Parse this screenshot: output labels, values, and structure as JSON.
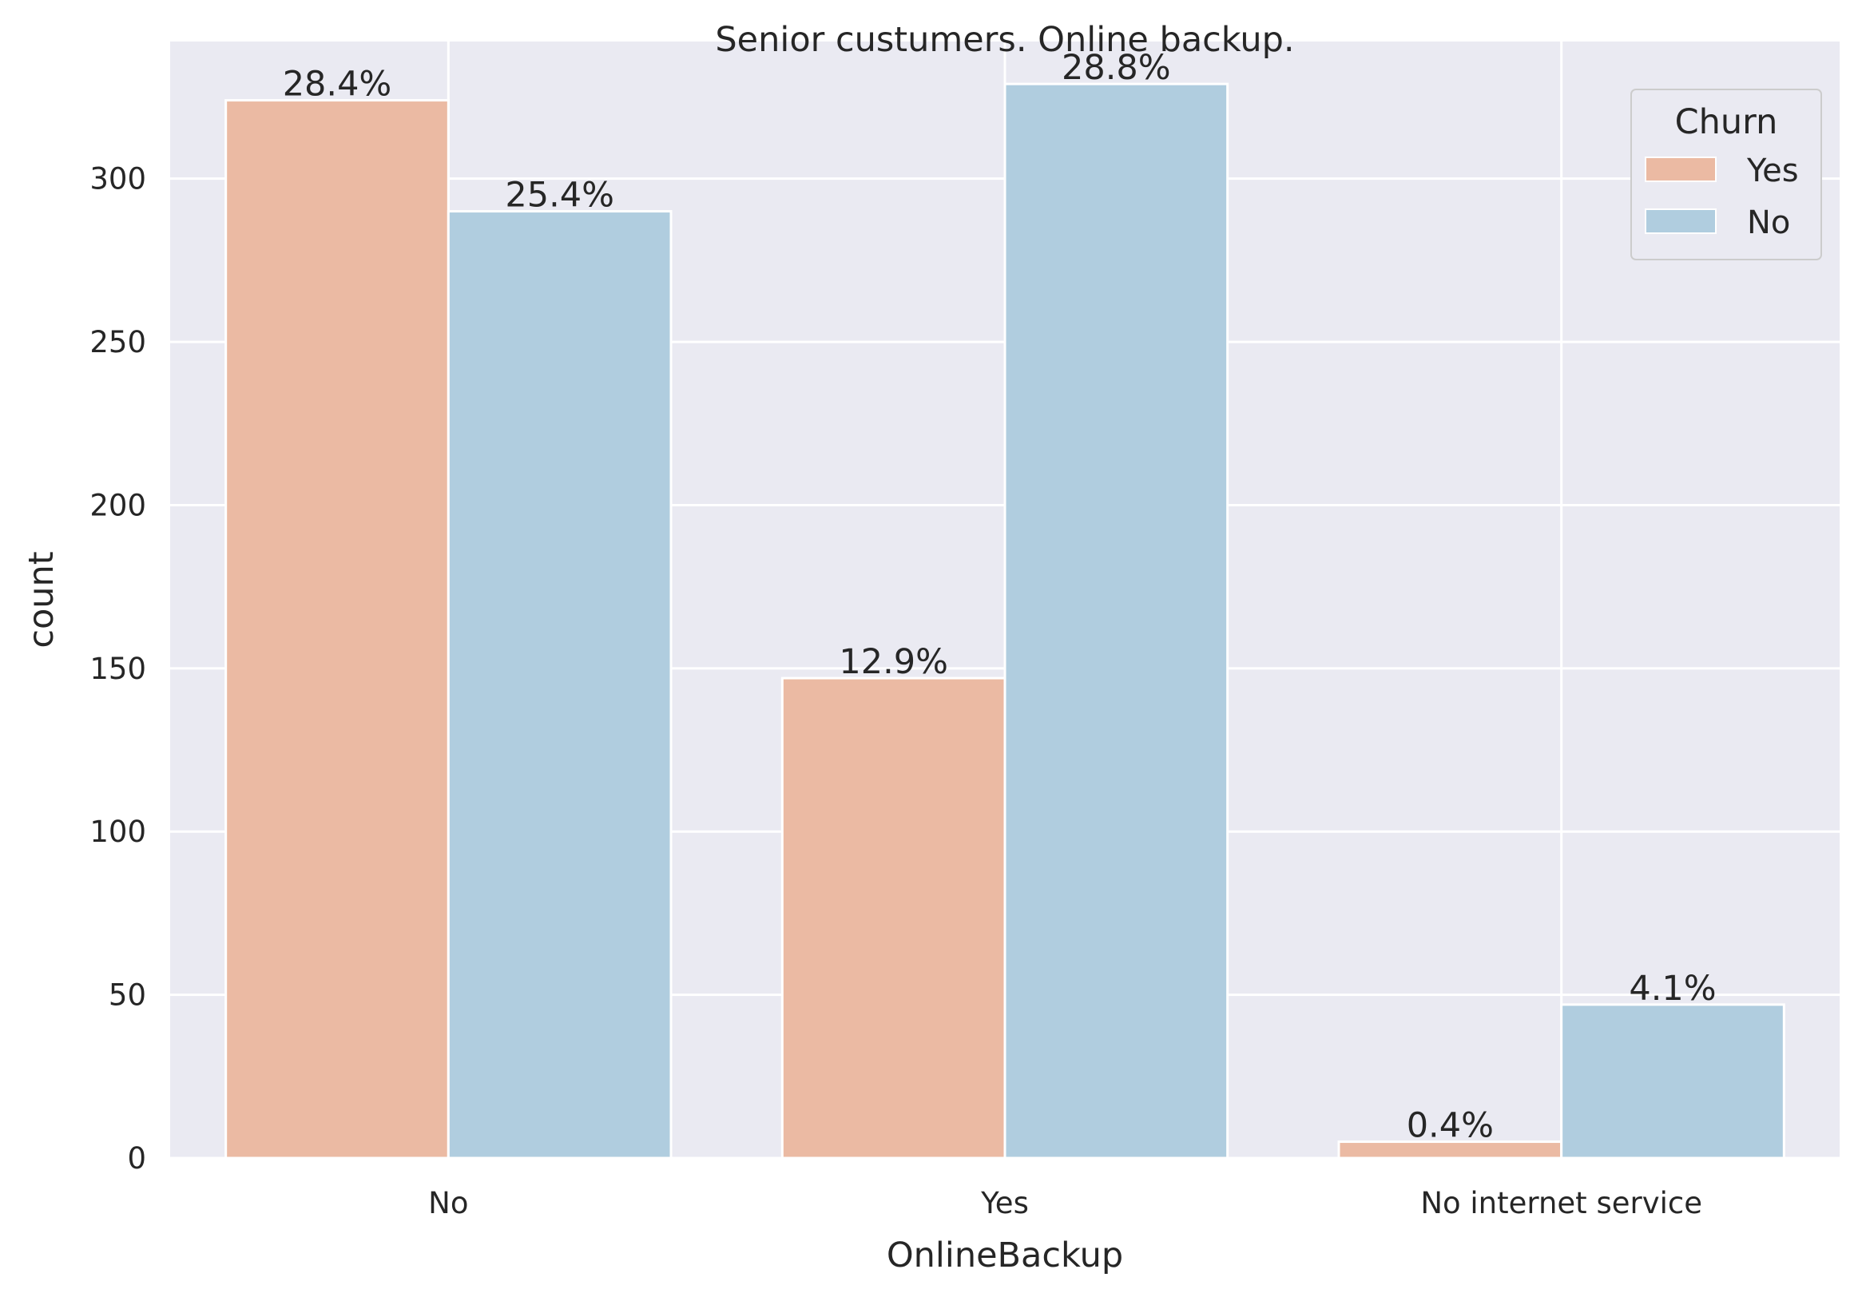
{
  "chart_data": {
    "type": "bar",
    "title": "Senior custumers. Online backup.",
    "xlabel": "OnlineBackup",
    "ylabel": "count",
    "categories": [
      "No",
      "Yes",
      "No internet service"
    ],
    "series": [
      {
        "name": "Yes",
        "color": "#ebbaa3",
        "values": [
          324,
          147,
          5
        ],
        "labels": [
          "28.4%",
          "12.9%",
          "0.4%"
        ]
      },
      {
        "name": "No",
        "color": "#b0cddf",
        "values": [
          290,
          329,
          47
        ],
        "labels": [
          "25.4%",
          "28.8%",
          "4.1%"
        ]
      }
    ],
    "ylim": [
      0,
      342
    ],
    "yticks": [
      0,
      50,
      100,
      150,
      200,
      250,
      300
    ],
    "legend": {
      "title": "Churn",
      "position": "top-right"
    },
    "grid": true,
    "background": "#eaeaf2"
  }
}
